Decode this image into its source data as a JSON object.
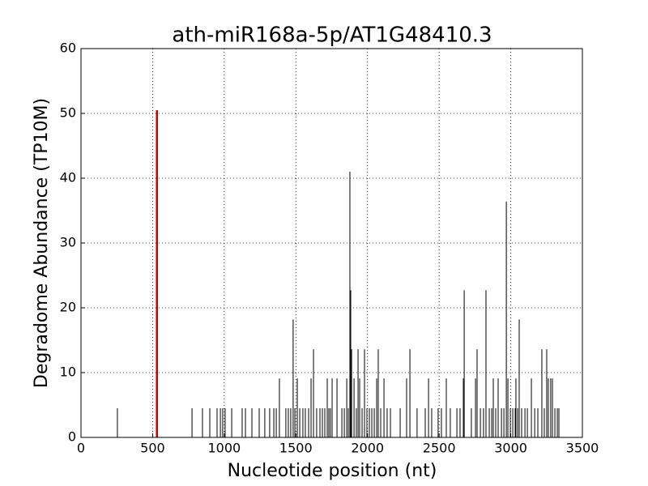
{
  "chart_data": {
    "type": "vlines",
    "title": "ath-miR168a-5p/AT1G48410.3",
    "xlabel": "Nucleotide position (nt)",
    "ylabel": "Degradome Abundance (TP10M)",
    "xlim": [
      0,
      3500
    ],
    "xticks": [
      0,
      500,
      1000,
      1500,
      2000,
      2500,
      3000,
      3500
    ],
    "ylim": [
      0,
      60
    ],
    "yticks": [
      0,
      10,
      20,
      30,
      40,
      50,
      60
    ],
    "grid": true,
    "series": [
      {
        "color": "#000000",
        "x": [
          254,
          775,
          848,
          899,
          950,
          973,
          989,
          1006,
          1052,
          1125,
          1148,
          1193,
          1244,
          1283,
          1317,
          1346,
          1363,
          1385,
          1430,
          1447,
          1464,
          1481,
          1493,
          1510,
          1527,
          1549,
          1566,
          1589,
          1606,
          1623,
          1645,
          1668,
          1685,
          1702,
          1719,
          1730,
          1741,
          1753,
          1787,
          1821,
          1838,
          1855,
          1866,
          1877,
          1883,
          1889,
          1906,
          1922,
          1934,
          1945,
          1962,
          1979,
          1996,
          2013,
          2030,
          2047,
          2064,
          2075,
          2092,
          2115,
          2137,
          2160,
          2228,
          2273,
          2296,
          2346,
          2403,
          2426,
          2448,
          2493,
          2516,
          2550,
          2578,
          2624,
          2646,
          2669,
          2675,
          2725,
          2754,
          2765,
          2788,
          2810,
          2827,
          2850,
          2867,
          2878,
          2895,
          2912,
          2935,
          2952,
          2969,
          2980,
          2997,
          3014,
          3031,
          3036,
          3048,
          3059,
          3076,
          3099,
          3116,
          3144,
          3167,
          3189,
          3217,
          3234,
          3251,
          3262,
          3279,
          3291,
          3308,
          3325,
          3336
        ],
        "values": [
          4.5,
          4.5,
          4.5,
          4.5,
          4.5,
          4.5,
          4.5,
          4.5,
          4.5,
          4.5,
          4.5,
          4.5,
          4.5,
          4.5,
          4.5,
          4.5,
          4.5,
          9.1,
          4.5,
          4.5,
          4.5,
          18.2,
          4.5,
          9.1,
          4.5,
          4.5,
          4.5,
          4.5,
          9.1,
          13.6,
          4.5,
          4.5,
          4.5,
          4.5,
          9.1,
          4.5,
          4.5,
          9.1,
          9.1,
          4.5,
          4.5,
          9.1,
          4.5,
          41,
          22.7,
          13.6,
          9.1,
          4.5,
          13.6,
          9.1,
          4.5,
          13.6,
          4.5,
          4.5,
          4.5,
          4.5,
          9.1,
          13.6,
          4.5,
          9.1,
          4.5,
          4.5,
          4.5,
          9.1,
          13.6,
          4.5,
          4.5,
          9.1,
          4.5,
          4.5,
          4.5,
          9.1,
          4.5,
          4.5,
          4.5,
          9.1,
          22.7,
          4.5,
          9.1,
          13.6,
          4.5,
          4.5,
          22.7,
          4.5,
          4.5,
          9.1,
          4.5,
          9.1,
          4.5,
          4.5,
          36.4,
          9.1,
          4.5,
          4.5,
          4.5,
          9.1,
          4.5,
          18.2,
          4.5,
          4.5,
          4.5,
          9.1,
          4.5,
          4.5,
          13.6,
          4.5,
          13.6,
          9.1,
          9.1,
          9.1,
          4.5,
          4.5,
          4.5
        ]
      },
      {
        "color": "#cc0000",
        "x": [
          530
        ],
        "values": [
          50.5
        ]
      }
    ]
  }
}
